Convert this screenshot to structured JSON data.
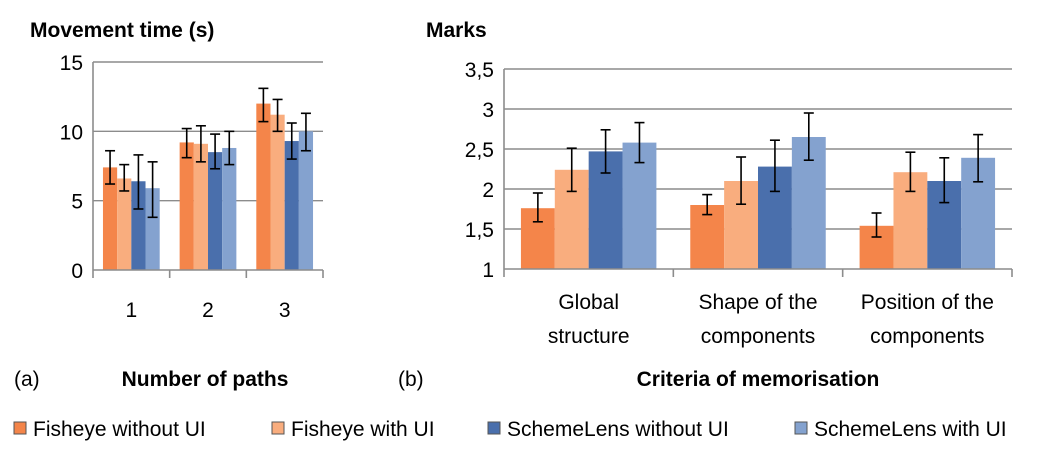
{
  "colors": {
    "fisheye_without_ui": "#f4854a",
    "fisheye_with_ui": "#f9ad7e",
    "schemelens_without_ui": "#4a6fac",
    "schemelens_with_ui": "#84a2cf"
  },
  "legend": [
    {
      "label": "Fisheye without UI",
      "color": "#f4854a"
    },
    {
      "label": "Fisheye with UI",
      "color": "#f9ad7e"
    },
    {
      "label": "SchemeLens without UI",
      "color": "#4a6fac"
    },
    {
      "label": "SchemeLens with UI",
      "color": "#84a2cf"
    }
  ],
  "chart_data": [
    {
      "type": "bar",
      "panel_label": "(a)",
      "title": "Movement  time (s)",
      "xlabel": "Number of paths",
      "ylabel": "",
      "ylim": [
        0,
        15
      ],
      "yticks": [
        0,
        5,
        10,
        15
      ],
      "ytick_labels": [
        "0",
        "5",
        "10",
        "15"
      ],
      "grid": true,
      "categories": [
        [
          "1"
        ],
        [
          "2"
        ],
        [
          "3"
        ]
      ],
      "series": [
        {
          "name": "Fisheye without UI",
          "values": [
            7.4,
            9.2,
            12.0
          ],
          "err_low": [
            6.2,
            8.1,
            10.7
          ],
          "err_high": [
            8.6,
            10.2,
            13.1
          ]
        },
        {
          "name": "Fisheye with UI",
          "values": [
            6.6,
            9.1,
            11.2
          ],
          "err_low": [
            5.7,
            7.8,
            10.0
          ],
          "err_high": [
            7.6,
            10.4,
            12.3
          ]
        },
        {
          "name": "SchemeLens without UI",
          "values": [
            6.4,
            8.5,
            9.3
          ],
          "err_low": [
            4.4,
            7.3,
            8.0
          ],
          "err_high": [
            8.3,
            9.8,
            10.6
          ]
        },
        {
          "name": "SchemeLens with UI",
          "values": [
            5.9,
            8.8,
            10.0
          ],
          "err_low": [
            3.8,
            7.6,
            8.6
          ],
          "err_high": [
            7.8,
            10.0,
            11.3
          ]
        }
      ]
    },
    {
      "type": "bar",
      "panel_label": "(b)",
      "title": "Marks",
      "xlabel": "Criteria of memorisation",
      "ylabel": "",
      "ylim": [
        1,
        3.5
      ],
      "yticks": [
        1,
        1.5,
        2,
        2.5,
        3,
        3.5
      ],
      "ytick_labels": [
        "1",
        "1,5",
        "2",
        "2,5",
        "3",
        "3,5"
      ],
      "grid": true,
      "categories": [
        [
          "Global",
          "structure"
        ],
        [
          "Shape of the",
          "components"
        ],
        [
          "Position of the",
          "components"
        ]
      ],
      "series": [
        {
          "name": "Fisheye without UI",
          "values": [
            1.76,
            1.8,
            1.54
          ],
          "err_low": [
            1.59,
            1.68,
            1.4
          ],
          "err_high": [
            1.95,
            1.93,
            1.7
          ]
        },
        {
          "name": "Fisheye with UI",
          "values": [
            2.24,
            2.1,
            2.21
          ],
          "err_low": [
            1.97,
            1.81,
            1.97
          ],
          "err_high": [
            2.51,
            2.4,
            2.46
          ]
        },
        {
          "name": "SchemeLens without UI",
          "values": [
            2.47,
            2.28,
            2.1
          ],
          "err_low": [
            2.2,
            1.97,
            1.83
          ],
          "err_high": [
            2.74,
            2.61,
            2.39
          ]
        },
        {
          "name": "SchemeLens with UI",
          "values": [
            2.58,
            2.65,
            2.39
          ],
          "err_low": [
            2.33,
            2.36,
            2.09
          ],
          "err_high": [
            2.83,
            2.95,
            2.68
          ]
        }
      ]
    }
  ]
}
